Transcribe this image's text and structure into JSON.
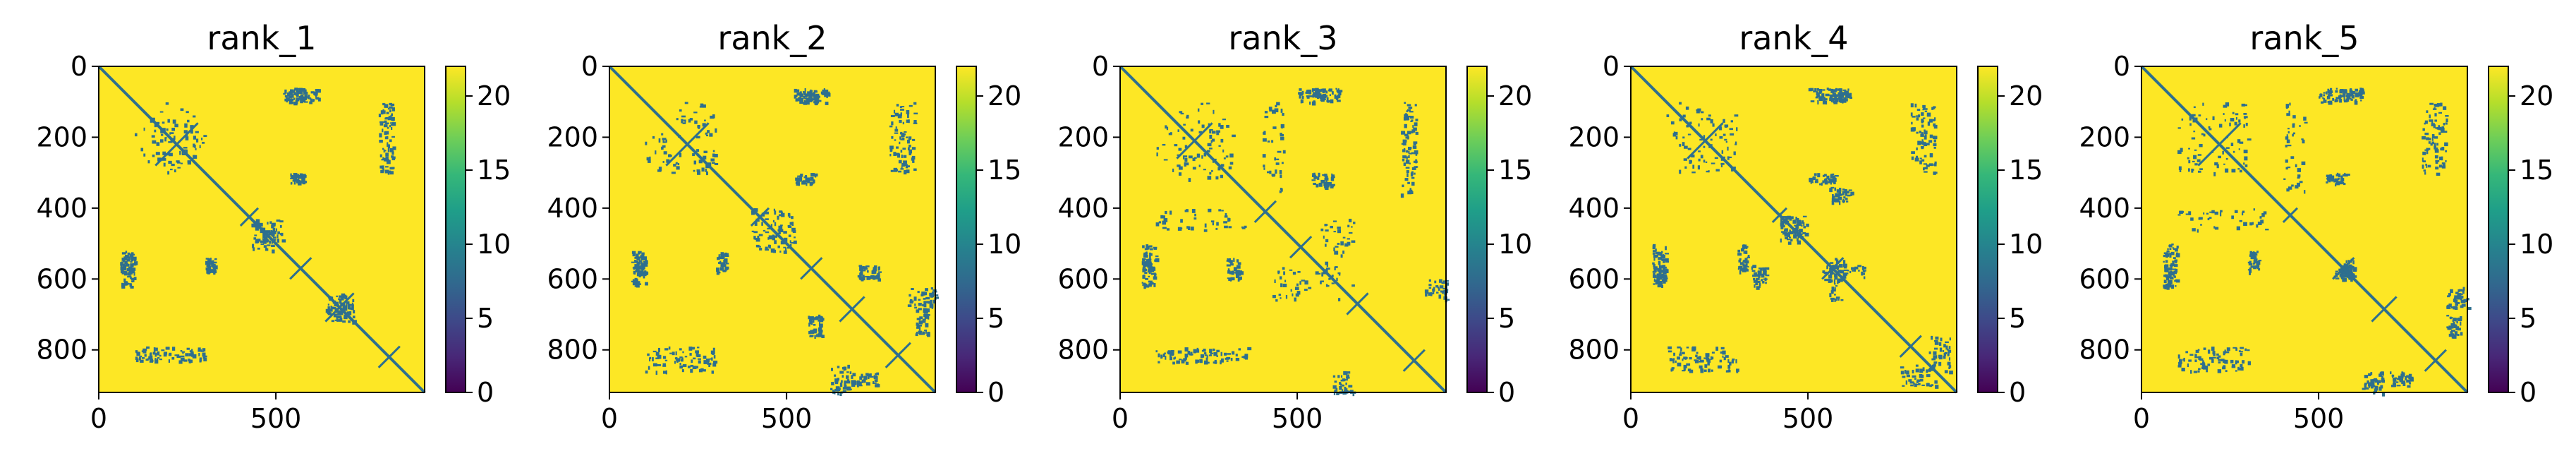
{
  "chart_data": [
    {
      "type": "heatmap",
      "title": "rank_1",
      "xlabel": "",
      "ylabel": "",
      "xlim": [
        0,
        920
      ],
      "ylim": [
        920,
        0
      ],
      "xticks": [
        "0",
        "500"
      ],
      "yticks": [
        "0",
        "200",
        "400",
        "600",
        "800"
      ],
      "colorbar": {
        "range": [
          0,
          22
        ],
        "ticks": [
          "0",
          "5",
          "10",
          "15",
          "20"
        ],
        "colormap": "viridis"
      },
      "background_value": 22,
      "diagonal_value": 8,
      "secondary_diagonals": [
        [
          160,
          280
        ],
        [
          400,
          450
        ],
        [
          540,
          600
        ],
        [
          640,
          720
        ],
        [
          790,
          850
        ]
      ],
      "contact_blocks": [
        {
          "x": [
            130,
            300
          ],
          "y": [
            100,
            300
          ]
        },
        {
          "x": [
            60,
            100
          ],
          "y": [
            540,
            620
          ]
        },
        {
          "x": [
            100,
            300
          ],
          "y": [
            790,
            830
          ]
        },
        {
          "x": [
            520,
            580
          ],
          "y": [
            60,
            100
          ]
        },
        {
          "x": [
            540,
            580
          ],
          "y": [
            300,
            330
          ]
        },
        {
          "x": [
            430,
            490
          ],
          "y": [
            440,
            520
          ]
        },
        {
          "x": [
            640,
            720
          ],
          "y": [
            640,
            720
          ]
        },
        {
          "x": [
            800,
            830
          ],
          "y": [
            100,
            300
          ]
        }
      ]
    },
    {
      "type": "heatmap",
      "title": "rank_2",
      "xlabel": "",
      "ylabel": "",
      "xlim": [
        0,
        920
      ],
      "ylim": [
        920,
        0
      ],
      "xticks": [
        "0",
        "500"
      ],
      "yticks": [
        "0",
        "200",
        "400",
        "600",
        "800"
      ],
      "colorbar": {
        "range": [
          0,
          22
        ],
        "ticks": [
          "0",
          "5",
          "10",
          "15",
          "20"
        ],
        "colormap": "viridis"
      },
      "background_value": 22,
      "diagonal_value": 8,
      "secondary_diagonals": [
        [
          160,
          280
        ],
        [
          400,
          450
        ],
        [
          540,
          600
        ],
        [
          650,
          720
        ],
        [
          780,
          850
        ]
      ],
      "contact_blocks": [
        {
          "x": [
            130,
            300
          ],
          "y": [
            100,
            300
          ]
        },
        {
          "x": [
            60,
            100
          ],
          "y": [
            560,
            620
          ]
        },
        {
          "x": [
            100,
            300
          ],
          "y": [
            790,
            830
          ]
        },
        {
          "x": [
            520,
            580
          ],
          "y": [
            60,
            100
          ]
        },
        {
          "x": [
            520,
            580
          ],
          "y": [
            300,
            330
          ]
        },
        {
          "x": [
            400,
            520
          ],
          "y": [
            400,
            520
          ]
        },
        {
          "x": [
            700,
            760
          ],
          "y": [
            560,
            600
          ]
        },
        {
          "x": [
            840,
            920
          ],
          "y": [
            620,
            680
          ]
        },
        {
          "x": [
            680,
            760
          ],
          "y": [
            860,
            900
          ]
        },
        {
          "x": [
            820,
            860
          ],
          "y": [
            100,
            300
          ]
        }
      ]
    },
    {
      "type": "heatmap",
      "title": "rank_3",
      "xlabel": "",
      "ylabel": "",
      "xlim": [
        0,
        920
      ],
      "ylim": [
        920,
        0
      ],
      "xticks": [
        "0",
        "500"
      ],
      "yticks": [
        "0",
        "200",
        "400",
        "600",
        "800"
      ],
      "colorbar": {
        "range": [
          0,
          22
        ],
        "ticks": [
          "0",
          "5",
          "10",
          "15",
          "20"
        ],
        "colormap": "viridis"
      },
      "background_value": 22,
      "diagonal_value": 8,
      "secondary_diagonals": [
        [
          160,
          260
        ],
        [
          380,
          440
        ],
        [
          480,
          540
        ],
        [
          640,
          700
        ],
        [
          800,
          860
        ]
      ],
      "contact_blocks": [
        {
          "x": [
            130,
            320
          ],
          "y": [
            100,
            300
          ]
        },
        {
          "x": [
            60,
            100
          ],
          "y": [
            540,
            620
          ]
        },
        {
          "x": [
            100,
            360
          ],
          "y": [
            400,
            460
          ]
        },
        {
          "x": [
            100,
            360
          ],
          "y": [
            790,
            830
          ]
        },
        {
          "x": [
            500,
            580
          ],
          "y": [
            60,
            100
          ]
        },
        {
          "x": [
            420,
            620
          ],
          "y": [
            560,
            660
          ]
        },
        {
          "x": [
            540,
            600
          ],
          "y": [
            300,
            340
          ]
        },
        {
          "x": [
            800,
            840
          ],
          "y": [
            100,
            300
          ]
        },
        {
          "x": [
            860,
            920
          ],
          "y": [
            600,
            660
          ]
        }
      ]
    },
    {
      "type": "heatmap",
      "title": "rank_4",
      "xlabel": "",
      "ylabel": "",
      "xlim": [
        0,
        920
      ],
      "ylim": [
        920,
        0
      ],
      "xticks": [
        "0",
        "500"
      ],
      "yticks": [
        "0",
        "200",
        "400",
        "600",
        "800"
      ],
      "colorbar": {
        "range": [
          0,
          22
        ],
        "ticks": [
          "0",
          "5",
          "10",
          "15",
          "20"
        ],
        "colormap": "viridis"
      },
      "background_value": 22,
      "diagonal_value": 8,
      "secondary_diagonals": [
        [
          160,
          260
        ],
        [
          400,
          440
        ],
        [
          540,
          600
        ],
        [
          760,
          820
        ]
      ],
      "contact_blocks": [
        {
          "x": [
            130,
            300
          ],
          "y": [
            100,
            300
          ]
        },
        {
          "x": [
            60,
            100
          ],
          "y": [
            560,
            620
          ]
        },
        {
          "x": [
            100,
            280
          ],
          "y": [
            790,
            830
          ]
        },
        {
          "x": [
            500,
            580
          ],
          "y": [
            60,
            100
          ]
        },
        {
          "x": [
            500,
            580
          ],
          "y": [
            300,
            330
          ]
        },
        {
          "x": [
            420,
            500
          ],
          "y": [
            420,
            480
          ]
        },
        {
          "x": [
            340,
            380
          ],
          "y": [
            560,
            620
          ]
        },
        {
          "x": [
            560,
            600
          ],
          "y": [
            540,
            660
          ]
        },
        {
          "x": [
            820,
            860
          ],
          "y": [
            100,
            300
          ]
        },
        {
          "x": [
            840,
            900
          ],
          "y": [
            760,
            860
          ]
        }
      ]
    },
    {
      "type": "heatmap",
      "title": "rank_5",
      "xlabel": "",
      "ylabel": "",
      "xlim": [
        0,
        920
      ],
      "ylim": [
        920,
        0
      ],
      "xticks": [
        "0",
        "500"
      ],
      "yticks": [
        "0",
        "200",
        "400",
        "600",
        "800"
      ],
      "colorbar": {
        "range": [
          0,
          22
        ],
        "ticks": [
          "0",
          "5",
          "10",
          "15",
          "20"
        ],
        "colormap": "viridis"
      },
      "background_value": 22,
      "diagonal_value": 8,
      "secondary_diagonals": [
        [
          160,
          280
        ],
        [
          400,
          440
        ],
        [
          540,
          600
        ],
        [
          650,
          720
        ],
        [
          800,
          860
        ]
      ],
      "contact_blocks": [
        {
          "x": [
            130,
            300
          ],
          "y": [
            100,
            300
          ]
        },
        {
          "x": [
            60,
            100
          ],
          "y": [
            560,
            620
          ]
        },
        {
          "x": [
            100,
            300
          ],
          "y": [
            790,
            830
          ]
        },
        {
          "x": [
            500,
            580
          ],
          "y": [
            60,
            100
          ]
        },
        {
          "x": [
            100,
            360
          ],
          "y": [
            400,
            460
          ]
        },
        {
          "x": [
            520,
            580
          ],
          "y": [
            300,
            330
          ]
        },
        {
          "x": [
            540,
            600
          ],
          "y": [
            560,
            600
          ]
        },
        {
          "x": [
            700,
            760
          ],
          "y": [
            860,
            900
          ]
        },
        {
          "x": [
            820,
            860
          ],
          "y": [
            100,
            300
          ]
        },
        {
          "x": [
            860,
            920
          ],
          "y": [
            620,
            680
          ]
        }
      ]
    }
  ]
}
